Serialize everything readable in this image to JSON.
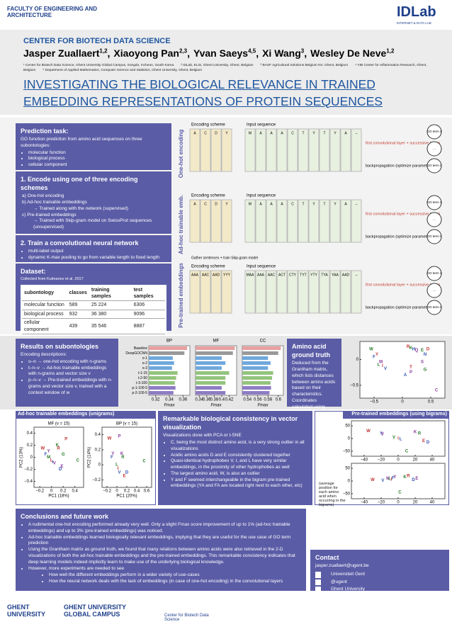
{
  "header": {
    "faculty": "FACULTY OF ENGINEERING AND ARCHITECTURE",
    "lab": "IDLab",
    "lab_sub": "INTERNET & DATA LAB"
  },
  "center": "CENTER FOR BIOTECH DATA SCIENCE",
  "authors": [
    {
      "name": "Jasper Zuallaert",
      "sup": "1,2"
    },
    {
      "name": "Xiaoyong Pan",
      "sup": "2,3"
    },
    {
      "name": "Yvan Saeys",
      "sup": "4,5"
    },
    {
      "name": "Xi Wang",
      "sup": "3"
    },
    {
      "name": "Wesley De Neve",
      "sup": "1,2"
    }
  ],
  "affiliations": [
    "¹ Center for Biotech Data Science, Ghent University Global Campus, Songdo, Incheon, South Korea",
    "² IDLab, ELIS, Ghent University, Ghent, Belgium",
    "³ BASF Agricultural Solutions Belgium NV, Ghent, Belgium",
    "⁴ VIB Center for Inflammation Research, Ghent, Belgium",
    "⁵ Department of Applied Mathematics, Computer Science and Statistics, Ghent University, Ghent, Belgium"
  ],
  "title": "INVESTIGATING THE BIOLOGICAL RELEVANCE IN TRAINED EMBEDDING REPRESENTATIONS OF PROTEIN SEQUENCES",
  "prediction_task": {
    "heading": "Prediction task:",
    "text": "GO function prediction from amino acid sequences on three subontologies:",
    "items": [
      "molecular function",
      "biological process",
      "cellular component"
    ]
  },
  "encode": {
    "heading": "1.  Encode using one of three encoding schemes",
    "items": [
      "a)  One-hot encoding",
      "b)  Ad-hoc trainable embeddings",
      "→ Trained along with the network (supervised)",
      "c)  Pre-trained embeddings",
      "→ Trained with Skip-gram model on SwissProt sequences (unsupervised)"
    ]
  },
  "train": {
    "heading": "2.  Train a convolutional neural network",
    "items": [
      "multi-label output",
      "dynamic K-max pooling to go from variable length to fixed length"
    ]
  },
  "dataset": {
    "heading": "Dataset:",
    "note": "Collected from Kulmanov et al. 2017",
    "columns": [
      "subontology",
      "classes",
      "training samples",
      "test samples"
    ],
    "rows": [
      [
        "molecular function",
        "589",
        "25 224",
        "6306"
      ],
      [
        "biological process",
        "932",
        "36 380",
        "9096"
      ],
      [
        "cellular component",
        "439",
        "35 546",
        "8887"
      ]
    ]
  },
  "diagram": {
    "encoding_scheme": "Encoding scheme",
    "input_sequence": "Input sequence",
    "layer": "first convolutional layer + successive layers",
    "backprop": "backpropagation (optimize parameters)",
    "go_terms": [
      "GO term 1",
      "...",
      "GO term n"
    ],
    "skipgram": "Gather sentences + train Skip-gram model",
    "rows": [
      {
        "label": "One-hot encoding",
        "scheme": [
          "A",
          "C",
          "D",
          "Y"
        ],
        "sequence": [
          "M",
          "A",
          "A",
          "A",
          "C",
          "T",
          "Y",
          "T",
          "Y",
          "A",
          "–"
        ]
      },
      {
        "label": "Ad-hoc trainable emb.",
        "scheme": [
          "A",
          "C",
          "D",
          "Y"
        ],
        "sequence": [
          "M",
          "A",
          "A",
          "A",
          "C",
          "T",
          "Y",
          "T",
          "Y",
          "A",
          "–"
        ]
      },
      {
        "label": "Pre-trained embeddings",
        "scheme": [
          "AAA",
          "AAC",
          "AAD",
          "YYY"
        ],
        "sequence": [
          "MAA",
          "AAA",
          "AAC",
          "ACT",
          "CTY",
          "TYT",
          "YTY",
          "TYA",
          "YAA",
          "AAD",
          "–"
        ]
      }
    ]
  },
  "results": {
    "heading": "Results on subontologies",
    "sub": "Encoding descriptions:",
    "items": [
      "o–n → one-hot encoding with n-grams",
      "t–n–v → Ad-hoc trainable embeddings with n-grams and vector size v",
      "p–n–v → Pre-trained embeddings with n-grams and vector size v, trained with a context window of w"
    ]
  },
  "bar_categories": [
    "Baseline",
    "DeepGOCNN",
    "o-1",
    "o-2",
    "o-3",
    "t-1-15",
    "t-2-50",
    "t-3-100",
    "p-1-100-5",
    "p-2-100-5"
  ],
  "bar_colors": [
    "#e8a0a0",
    "#999999",
    "#6fa8dc",
    "#6fa8dc",
    "#6fa8dc",
    "#93c47d",
    "#93c47d",
    "#93c47d",
    "#8e7cc3",
    "#8e7cc3"
  ],
  "charts": [
    {
      "type": "bar",
      "title": "BP",
      "xlabel": "Fmax",
      "xlim": [
        0.31,
        0.37
      ],
      "xticks": [
        0.32,
        0.34,
        0.36
      ],
      "values": [
        0.366,
        0.362,
        0.345,
        0.347,
        0.344,
        0.352,
        0.35,
        0.348,
        0.349,
        0.346
      ]
    },
    {
      "type": "bar",
      "title": "MF",
      "xlabel": "Fmax",
      "xlim": [
        0.33,
        0.44
      ],
      "xticks": [
        0.34,
        0.36,
        0.38,
        0.4,
        0.42
      ],
      "values": [
        0.435,
        0.43,
        0.4,
        0.41,
        0.4,
        0.42,
        0.41,
        0.41,
        0.4,
        0.41
      ]
    },
    {
      "type": "bar",
      "title": "CC",
      "xlabel": "Fmax",
      "xlim": [
        0.53,
        0.61
      ],
      "xticks": [
        0.54,
        0.56,
        0.58,
        0.6
      ],
      "values": [
        0.605,
        0.6,
        0.58,
        0.585,
        0.58,
        0.59,
        0.588,
        0.585,
        0.586,
        0.583
      ]
    }
  ],
  "amino": {
    "heading": "Amino acid ground truth",
    "text": "Deduced from the Grantham matrix, which lists distances between amino acids based on their characteristics. Coordinates calculated using metric multi-dimensional scaling",
    "chart": {
      "type": "scatter",
      "xlim": [
        -0.75,
        0.75
      ],
      "ylim": [
        -0.75,
        0.35
      ],
      "xticks": [
        {
          "value": -0.5,
          "label": "−0.5"
        },
        0,
        0.5
      ],
      "yticks": [
        {
          "value": -0.5,
          "label": "−0.5"
        },
        0
      ],
      "labels": [
        "W",
        "Y",
        "F",
        "M",
        "L",
        "I",
        "V",
        "C",
        "K",
        "R",
        "H",
        "Q",
        "E",
        "D",
        "N",
        "S",
        "G",
        "T",
        "A",
        "P"
      ],
      "x": [
        -0.55,
        -0.45,
        -0.5,
        -0.38,
        -0.42,
        -0.35,
        -0.3,
        0.6,
        0.15,
        0.1,
        0.2,
        0.25,
        0.35,
        0.45,
        0.4,
        0.35,
        0.4,
        0.15,
        0.05,
        0.15
      ],
      "y": [
        0.2,
        0.1,
        0.05,
        -0.05,
        -0.1,
        -0.12,
        -0.18,
        -0.6,
        0.22,
        0.25,
        0.2,
        0.18,
        0.18,
        0.2,
        0.1,
        -0.05,
        -0.2,
        -0.15,
        -0.3,
        -0.25
      ]
    }
  },
  "adhoc": {
    "heading": "Ad-hoc trainable embeddings (unigrams)",
    "charts": [
      {
        "type": "scatter",
        "title": "MF (v = 15)",
        "xlabel": "PC1 (18%)",
        "ylabel": "PC2 (13%)",
        "xlim": [
          -0.3,
          0.55
        ],
        "ylim": [
          -0.5,
          0.5
        ],
        "xticks": [
          {
            "value": -0.2,
            "label": "−0.2"
          },
          0,
          0.2,
          0.4
        ],
        "yticks": [
          {
            "value": -0.4,
            "label": "−0.4"
          },
          {
            "value": -0.2,
            "label": "−0.2"
          },
          0,
          0.2,
          0.4
        ],
        "labels": [
          "C",
          "W",
          "F",
          "Y",
          "M",
          "L",
          "I",
          "V",
          "K",
          "R",
          "D",
          "E",
          "G",
          "P"
        ],
        "x": [
          0.45,
          -0.15,
          -0.1,
          -0.05,
          -0.05,
          0.0,
          0.02,
          0.05,
          0.1,
          0.12,
          0.15,
          0.18,
          0.2,
          0.25
        ],
        "y": [
          -0.05,
          0.15,
          0.05,
          0.1,
          0.0,
          -0.05,
          -0.08,
          -0.1,
          0.2,
          0.15,
          -0.2,
          -0.15,
          0.05,
          0.3
        ]
      },
      {
        "type": "scatter",
        "title": "BP (v = 15)",
        "xlabel": "PC1 (20%)",
        "ylabel": "PC2 (14%)",
        "xlim": [
          -0.3,
          0.7
        ],
        "ylim": [
          -0.3,
          0.5
        ],
        "xticks": [
          {
            "value": -0.2,
            "label": "−0.2"
          },
          0,
          0.2,
          0.4,
          0.6
        ],
        "yticks": [
          {
            "value": -0.2,
            "label": "−0.2"
          },
          0,
          0.2,
          0.4
        ],
        "labels": [
          "C",
          "W",
          "F",
          "Y",
          "L",
          "I",
          "V",
          "K",
          "R",
          "E",
          "D",
          "P"
        ],
        "x": [
          0.55,
          -0.15,
          -0.1,
          -0.08,
          0.0,
          0.02,
          0.05,
          0.1,
          0.12,
          0.15,
          0.2,
          0.05
        ],
        "y": [
          0.05,
          0.35,
          0.1,
          0.15,
          0.0,
          -0.05,
          -0.1,
          0.15,
          0.1,
          -0.15,
          -0.1,
          0.38
        ]
      }
    ]
  },
  "remarkable": {
    "heading": "Remarkable biological consistency in vector visualization",
    "text": "Visualizations done with PCA or t-SNE",
    "items": [
      "C, being the most distinct amino acid, is a very strong outlier in all visualizations",
      "Acidic amino acids D and E consistently clustered together",
      "Quasi-identical hydrophobes V, I, and L have very similar embeddings, in the proximity of other hydrophobes as well",
      "The largest amino acid, W, is also an outlier",
      "Y and F seemed interchangeable in the bigram pre-trained embeddings (YA and FA are located right next to each other, etc)"
    ]
  },
  "pretrained": {
    "heading": "Pre-trained embeddings (using bigrams)",
    "note": "(average position for each amino acid when occurring in the bigrams)",
    "charts": [
      {
        "type": "scatter",
        "xlim": [
          -55,
          55
        ],
        "ylim": [
          -70,
          70
        ],
        "xticks": [
          {
            "value": -40,
            "label": "−40"
          },
          {
            "value": -20,
            "label": "−20"
          },
          0,
          20,
          40
        ],
        "yticks": [
          {
            "value": -50,
            "label": "−50"
          },
          0,
          50
        ],
        "labels": [
          "C",
          "W",
          "Y",
          "F",
          "V",
          "I",
          "L",
          "K",
          "R",
          "E",
          "D"
        ],
        "x": [
          10,
          -35,
          -20,
          -18,
          -5,
          0,
          3,
          20,
          25,
          30,
          35
        ],
        "y": [
          -50,
          30,
          20,
          15,
          5,
          0,
          -3,
          25,
          20,
          -10,
          -15
        ]
      },
      {
        "type": "scatter",
        "xlim": [
          -55,
          55
        ],
        "ylim": [
          -70,
          70
        ],
        "xticks": [
          {
            "value": -40,
            "label": "−40"
          },
          {
            "value": -20,
            "label": "−20"
          },
          0,
          20,
          40
        ],
        "yticks": [
          {
            "value": -50,
            "label": "−50"
          },
          0,
          50
        ],
        "labels": [
          "C",
          "W",
          "V",
          "M",
          "L",
          "I",
          "F",
          "Y",
          "K",
          "R",
          "D",
          "E"
        ],
        "x": [
          2,
          -30,
          -18,
          -12,
          -10,
          -8,
          -6,
          -4,
          8,
          12,
          18,
          22
        ],
        "y": [
          -45,
          5,
          2,
          10,
          8,
          6,
          12,
          15,
          15,
          20,
          5,
          10
        ]
      }
    ]
  },
  "conclusions": {
    "heading": "Conclusions and future work",
    "items": [
      "A rudimental one-hot encoding performed already very well. Only a slight Fmax score improvement of up to 1% (ad-hoc trainable embeddings) and up to 3% (pre-trained embeddings) was noticed.",
      "Ad-hoc trainable embeddings learned biologically relevant embeddings, implying that they are useful for the use case of GO term prediction",
      "Using the Grantham matrix as ground truth, we found that many relations between amino acids were also retrieved in the 2-D visualizations of both the ad-hoc trainable embeddings and the pre-trained embeddings. This remarkable consistency indicates that deep learning models indeed implicitly learn to make use of the underlying biological knowledge.",
      "However, more experiments are needed to see",
      "How well the different embeddings perform in a wider variety of use-cases",
      "How the neural network deals with the lack of embeddings (in case of one-hot encoding) in the convolutional layers"
    ]
  },
  "contact": {
    "heading": "Contact",
    "email": "jasper.zuallaert@ugent.be",
    "links": [
      "Universiteit Gent",
      "@ugent",
      "Ghent University"
    ]
  },
  "footer": {
    "ugent": "GHENT UNIVERSITY",
    "global": "GHENT UNIVERSITY GLOBAL CAMPUS",
    "cbds": "Center for Biotech Data Science"
  }
}
